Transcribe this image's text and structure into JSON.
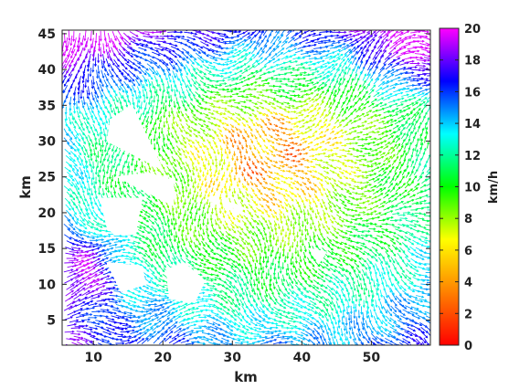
{
  "chart_data": {
    "type": "vector-field",
    "xlabel": "km",
    "ylabel": "km",
    "xlim": [
      5.5,
      58.5
    ],
    "ylim": [
      1.5,
      45.5
    ],
    "x_ticks": [
      10,
      20,
      30,
      40,
      50
    ],
    "y_ticks": [
      5,
      10,
      15,
      20,
      25,
      30,
      35,
      40,
      45
    ],
    "grid": false,
    "colorbar": {
      "label": "km/h",
      "range": [
        0,
        20
      ],
      "ticks": [
        0,
        2,
        4,
        6,
        8,
        10,
        12,
        14,
        16,
        18,
        20
      ],
      "colormap": [
        "#ff0000",
        "#ff8000",
        "#ffff00",
        "#00ff00",
        "#00ffff",
        "#0000ff",
        "#ff00ff"
      ]
    },
    "speed_regions": [
      {
        "name": "central low-speed core",
        "center": [
          35,
          28
        ],
        "speed_kmh": 2.5
      },
      {
        "name": "northeast high-speed corner",
        "center": [
          54,
          43
        ],
        "speed_kmh": 15
      },
      {
        "name": "west high-speed edge",
        "center": [
          8,
          12
        ],
        "speed_kmh": 16
      }
    ],
    "blank_areas": [
      [
        [
          12.5,
          33
        ],
        [
          15.5,
          35
        ],
        [
          18,
          30
        ],
        [
          20,
          26
        ],
        [
          12,
          30
        ]
      ],
      [
        [
          13.5,
          25
        ],
        [
          17.5,
          23
        ],
        [
          21.5,
          21
        ],
        [
          21.5,
          24.5
        ],
        [
          18,
          25.5
        ]
      ],
      [
        [
          11,
          22
        ],
        [
          17,
          22
        ],
        [
          16,
          17
        ],
        [
          13,
          17
        ],
        [
          12,
          18
        ]
      ],
      [
        [
          12,
          13
        ],
        [
          14,
          9
        ],
        [
          17.5,
          10
        ],
        [
          17,
          12.5
        ]
      ],
      [
        [
          20.5,
          12
        ],
        [
          23,
          13
        ],
        [
          26,
          10.5
        ],
        [
          24.5,
          7.5
        ],
        [
          21,
          8
        ]
      ],
      [
        [
          26.5,
          22
        ],
        [
          28,
          22.5
        ],
        [
          28,
          21
        ]
      ],
      [
        [
          28.5,
          22.5
        ],
        [
          30,
          21
        ],
        [
          29,
          20.5
        ]
      ],
      [
        [
          30,
          21.5
        ],
        [
          31.5,
          20.5
        ],
        [
          30.5,
          19.5
        ]
      ],
      [
        [
          41,
          15
        ],
        [
          42.5,
          13
        ],
        [
          43.5,
          14.5
        ]
      ]
    ]
  }
}
